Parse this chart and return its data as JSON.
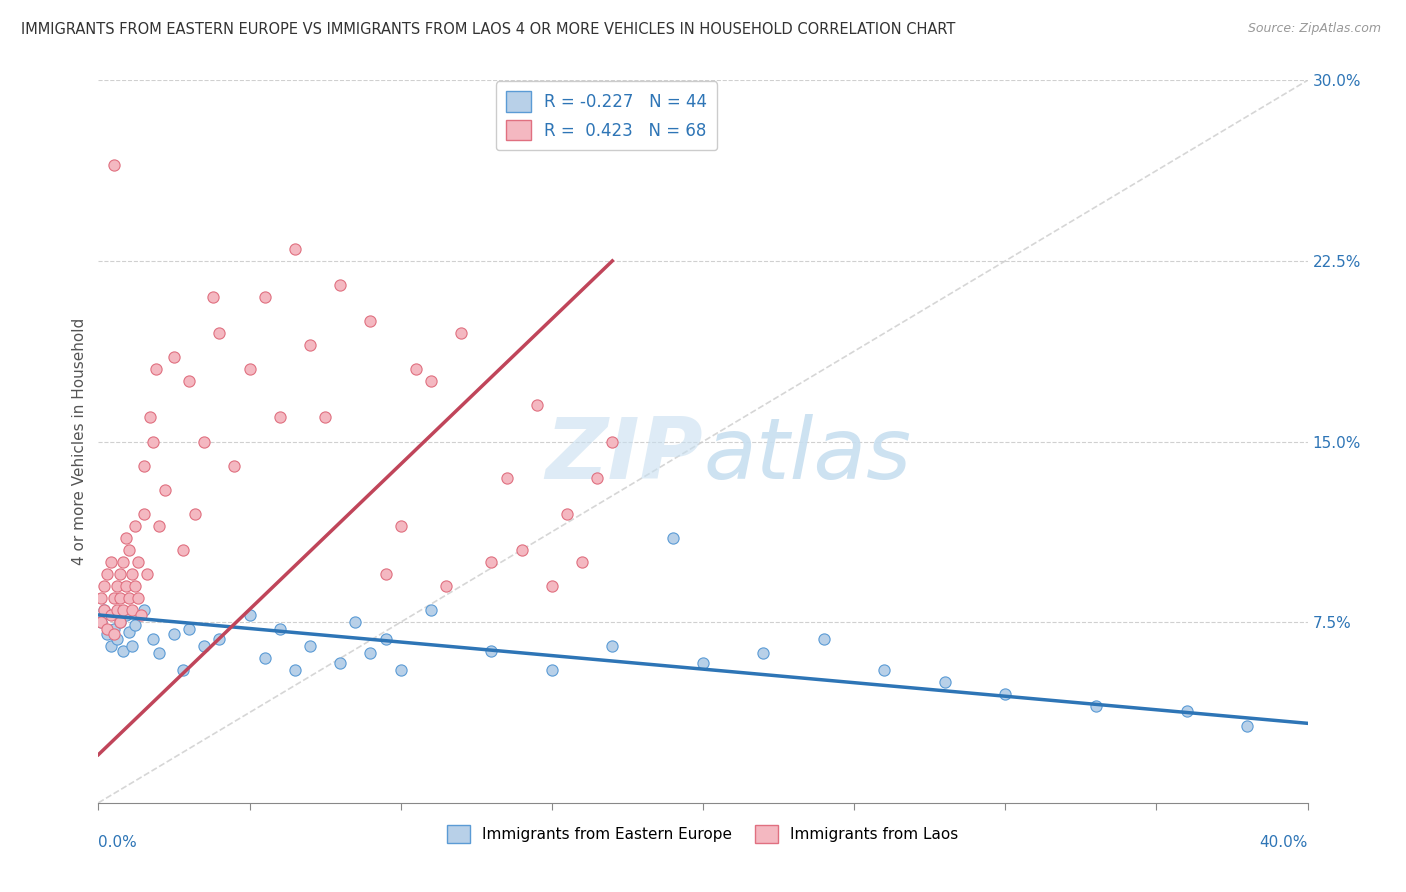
{
  "title": "IMMIGRANTS FROM EASTERN EUROPE VS IMMIGRANTS FROM LAOS 4 OR MORE VEHICLES IN HOUSEHOLD CORRELATION CHART",
  "source": "Source: ZipAtlas.com",
  "ylabel_label": "4 or more Vehicles in Household",
  "legend_label1": "Immigrants from Eastern Europe",
  "legend_label2": "Immigrants from Laos",
  "R1": -0.227,
  "N1": 44,
  "R2": 0.423,
  "N2": 68,
  "color_blue_fill": "#b8d0e8",
  "color_blue_edge": "#5b9bd5",
  "color_blue_line": "#2e75b6",
  "color_pink_fill": "#f4b8c1",
  "color_pink_edge": "#e07080",
  "color_pink_line": "#c0455a",
  "color_diag": "#cccccc",
  "watermark_color": "#c8dff0",
  "background": "#ffffff",
  "xlim": [
    0.0,
    0.4
  ],
  "ylim": [
    0.0,
    0.3
  ],
  "yticks": [
    0.075,
    0.15,
    0.225,
    0.3
  ],
  "ytick_labels": [
    "7.5%",
    "15.0%",
    "22.5%",
    "30.0%"
  ],
  "blue_scatter_x": [
    0.001,
    0.002,
    0.003,
    0.004,
    0.005,
    0.006,
    0.007,
    0.008,
    0.009,
    0.01,
    0.011,
    0.012,
    0.015,
    0.018,
    0.02,
    0.025,
    0.028,
    0.03,
    0.035,
    0.04,
    0.05,
    0.055,
    0.06,
    0.065,
    0.07,
    0.08,
    0.085,
    0.09,
    0.095,
    0.1,
    0.11,
    0.13,
    0.15,
    0.17,
    0.19,
    0.2,
    0.22,
    0.24,
    0.26,
    0.28,
    0.3,
    0.33,
    0.36,
    0.38
  ],
  "blue_scatter_y": [
    0.075,
    0.08,
    0.07,
    0.065,
    0.072,
    0.068,
    0.075,
    0.063,
    0.078,
    0.071,
    0.065,
    0.074,
    0.08,
    0.068,
    0.062,
    0.07,
    0.055,
    0.072,
    0.065,
    0.068,
    0.078,
    0.06,
    0.072,
    0.055,
    0.065,
    0.058,
    0.075,
    0.062,
    0.068,
    0.055,
    0.08,
    0.063,
    0.055,
    0.065,
    0.11,
    0.058,
    0.062,
    0.068,
    0.055,
    0.05,
    0.045,
    0.04,
    0.038,
    0.032
  ],
  "pink_scatter_x": [
    0.001,
    0.001,
    0.002,
    0.002,
    0.003,
    0.003,
    0.004,
    0.004,
    0.005,
    0.005,
    0.005,
    0.006,
    0.006,
    0.007,
    0.007,
    0.007,
    0.008,
    0.008,
    0.009,
    0.009,
    0.01,
    0.01,
    0.011,
    0.011,
    0.012,
    0.012,
    0.013,
    0.013,
    0.014,
    0.015,
    0.015,
    0.016,
    0.017,
    0.018,
    0.019,
    0.02,
    0.022,
    0.025,
    0.028,
    0.03,
    0.032,
    0.035,
    0.038,
    0.04,
    0.045,
    0.05,
    0.055,
    0.06,
    0.065,
    0.07,
    0.075,
    0.08,
    0.09,
    0.095,
    0.1,
    0.105,
    0.11,
    0.115,
    0.12,
    0.13,
    0.135,
    0.14,
    0.145,
    0.15,
    0.155,
    0.16,
    0.165,
    0.17
  ],
  "pink_scatter_y": [
    0.075,
    0.085,
    0.08,
    0.09,
    0.072,
    0.095,
    0.078,
    0.1,
    0.07,
    0.085,
    0.265,
    0.08,
    0.09,
    0.075,
    0.085,
    0.095,
    0.08,
    0.1,
    0.09,
    0.11,
    0.085,
    0.105,
    0.08,
    0.095,
    0.09,
    0.115,
    0.085,
    0.1,
    0.078,
    0.12,
    0.14,
    0.095,
    0.16,
    0.15,
    0.18,
    0.115,
    0.13,
    0.185,
    0.105,
    0.175,
    0.12,
    0.15,
    0.21,
    0.195,
    0.14,
    0.18,
    0.21,
    0.16,
    0.23,
    0.19,
    0.16,
    0.215,
    0.2,
    0.095,
    0.115,
    0.18,
    0.175,
    0.09,
    0.195,
    0.1,
    0.135,
    0.105,
    0.165,
    0.09,
    0.12,
    0.1,
    0.135,
    0.15
  ],
  "blue_trend_x": [
    0.0,
    0.4
  ],
  "blue_trend_y": [
    0.078,
    0.033
  ],
  "pink_trend_x": [
    0.0,
    0.17
  ],
  "pink_trend_y": [
    0.02,
    0.225
  ]
}
